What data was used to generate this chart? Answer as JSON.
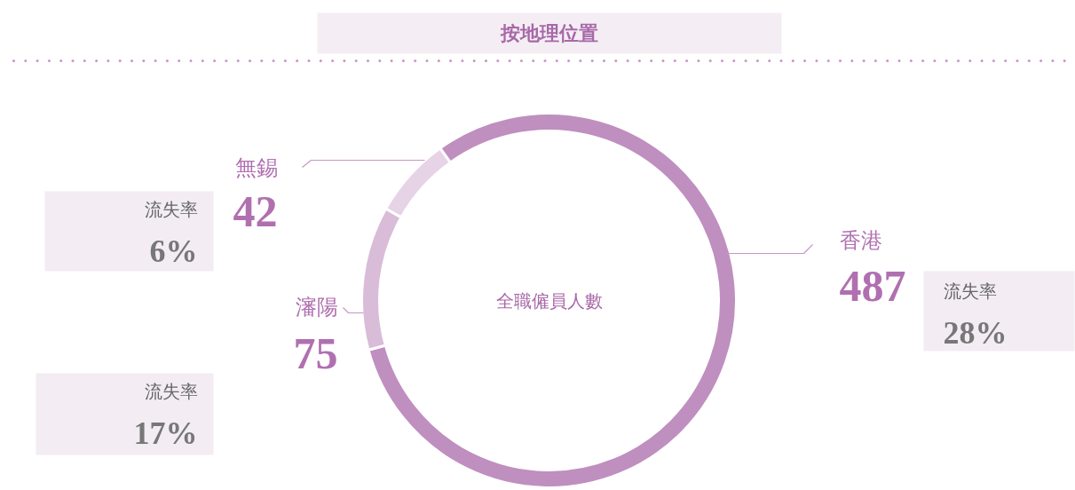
{
  "chart_data": {
    "type": "donut",
    "title": "按地理位置",
    "categories": [
      "香港",
      "瀋陽",
      "無錫"
    ],
    "values": [
      487,
      75,
      42
    ],
    "colors": [
      "#bf8fbf",
      "#d8bcd8",
      "#e6d3e6"
    ],
    "data_labels": true,
    "legend": false,
    "annotations": [
      "全職僱員人數",
      "流失率",
      "28%",
      "流失率",
      "17%",
      "流失率",
      "6%"
    ]
  }
}
